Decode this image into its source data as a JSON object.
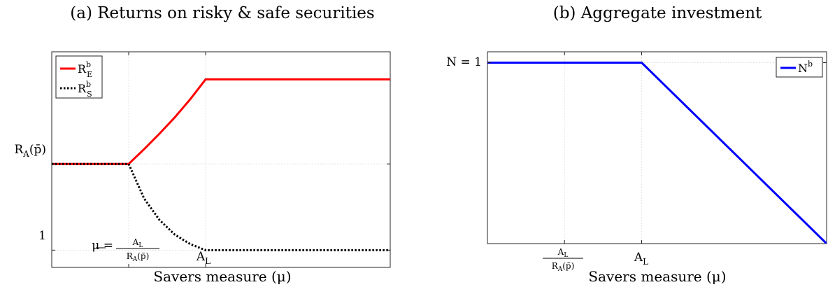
{
  "chart_data": [
    {
      "type": "line",
      "panel": "a",
      "title": "(a) Returns on risky & safe securities",
      "xlabel": "Savers measure (μ)",
      "ylabel": "",
      "x_ticks": [
        {
          "x": 1,
          "label": "μ = A_L / R_A(p̄)"
        },
        {
          "x": 2,
          "label": "A_L"
        }
      ],
      "y_ticks": [
        {
          "y": 1,
          "label": "1"
        },
        {
          "y": 2,
          "label": "R_A(p̄)"
        }
      ],
      "xlim": [
        0,
        4.4
      ],
      "ylim": [
        0.8,
        3.3
      ],
      "grid": true,
      "legend_position": "top-left",
      "series": [
        {
          "name": "R_E^b",
          "color": "#ff0000",
          "style": "solid",
          "x": [
            0,
            1,
            1.2,
            1.4,
            1.6,
            1.8,
            2,
            4.4
          ],
          "y": [
            2,
            2,
            2.17,
            2.35,
            2.54,
            2.75,
            2.98,
            2.98
          ]
        },
        {
          "name": "R_S^b",
          "color": "#000000",
          "style": "dotted",
          "x": [
            0,
            1,
            1.2,
            1.4,
            1.6,
            1.8,
            2,
            4.4
          ],
          "y": [
            2,
            2,
            1.6,
            1.35,
            1.18,
            1.07,
            1,
            1
          ]
        }
      ]
    },
    {
      "type": "line",
      "panel": "b",
      "title": "(b) Aggregate investment",
      "xlabel": "Savers measure (μ)",
      "ylabel": "",
      "x_ticks": [
        {
          "x": 1,
          "label": "A_L / R_A(p̄)"
        },
        {
          "x": 2,
          "label": "A_L"
        }
      ],
      "y_ticks": [
        {
          "y": 1,
          "label": "N = 1"
        }
      ],
      "xlim": [
        0,
        4.4
      ],
      "ylim": [
        0,
        1.06
      ],
      "grid": true,
      "legend_position": "top-right",
      "series": [
        {
          "name": "N^b",
          "color": "#0000ff",
          "style": "solid",
          "x": [
            0,
            2,
            4.4
          ],
          "y": [
            1,
            1,
            0
          ]
        }
      ]
    }
  ]
}
